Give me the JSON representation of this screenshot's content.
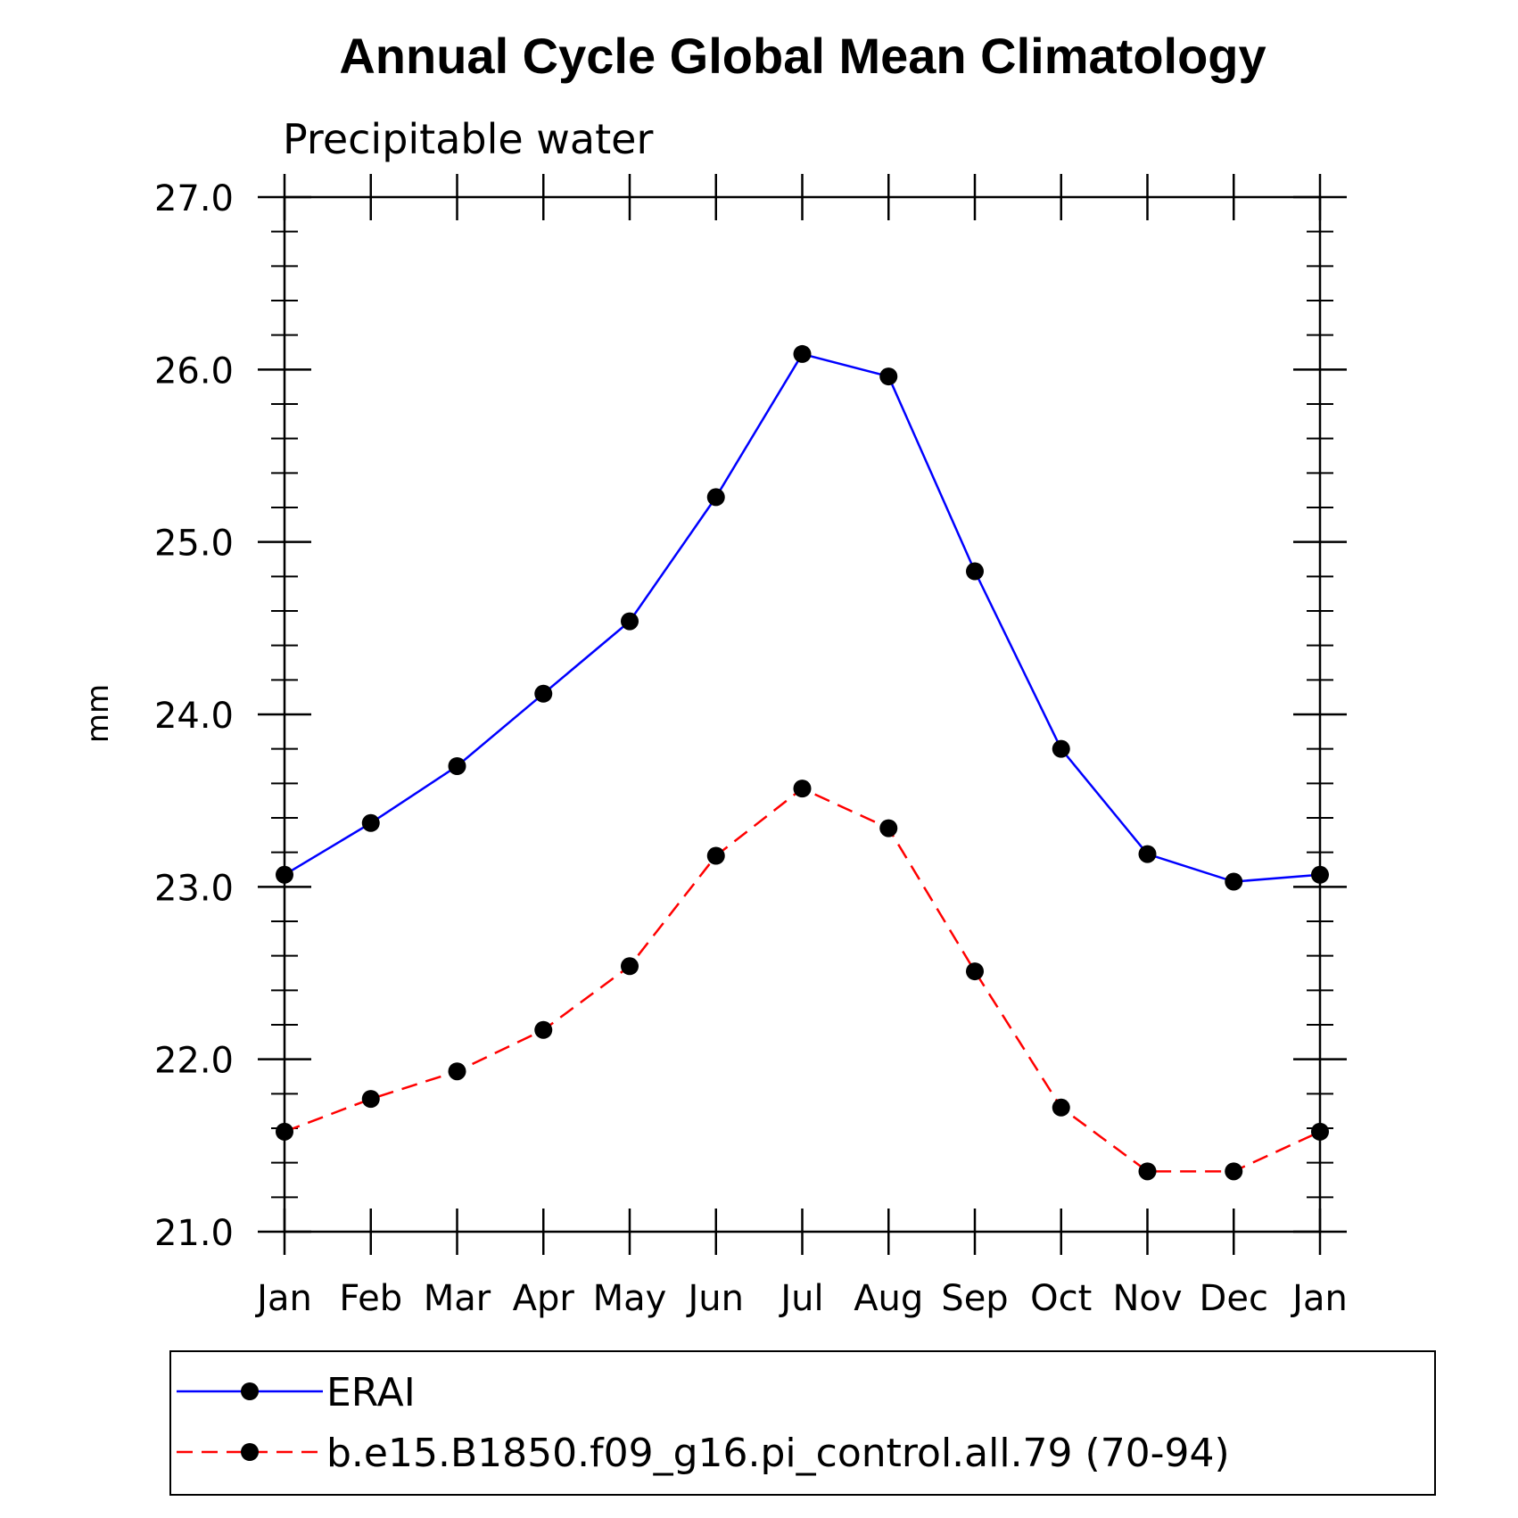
{
  "chart_data": {
    "type": "line",
    "title": "Annual Cycle Global Mean Climatology",
    "subtitle": "Precipitable water",
    "xlabel": "",
    "ylabel": "mm",
    "categories": [
      "Jan",
      "Feb",
      "Mar",
      "Apr",
      "May",
      "Jun",
      "Jul",
      "Aug",
      "Sep",
      "Oct",
      "Nov",
      "Dec",
      "Jan"
    ],
    "ylim": [
      21.0,
      27.0
    ],
    "yticks": [
      "21.0",
      "22.0",
      "23.0",
      "24.0",
      "25.0",
      "26.0",
      "27.0"
    ],
    "grid": false,
    "legend_position": "bottom",
    "series": [
      {
        "name": "ERAI",
        "color": "#0000ff",
        "dash": "solid",
        "values": [
          23.07,
          23.37,
          23.7,
          24.12,
          24.54,
          25.26,
          26.09,
          25.96,
          24.83,
          23.8,
          23.19,
          23.03,
          23.07
        ]
      },
      {
        "name": "b.e15.B1850.f09_g16.pi_control.all.79 (70-94)",
        "color": "#ff0000",
        "dash": "dashed",
        "values": [
          21.58,
          21.77,
          21.93,
          22.17,
          22.54,
          23.18,
          23.57,
          23.34,
          22.51,
          21.72,
          21.35,
          21.35,
          21.58
        ]
      }
    ]
  }
}
